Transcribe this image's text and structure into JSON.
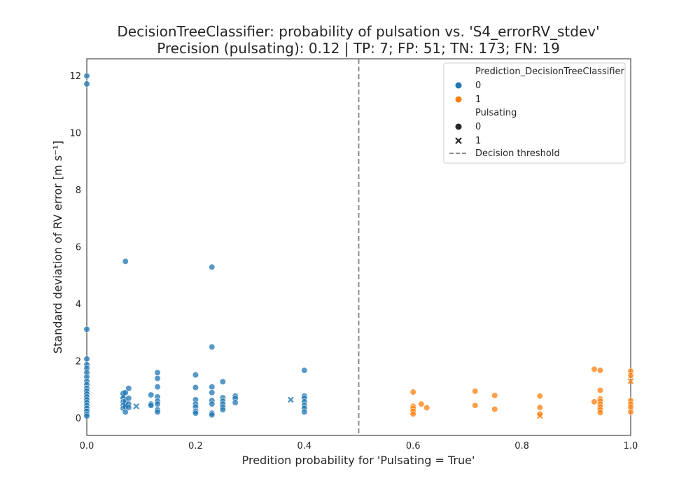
{
  "chart_data": {
    "type": "scatter",
    "title": "DecisionTreeClassifier: probability of pulsation vs. 'S4_errorRV_stdev'",
    "subtitle": "Precision (pulsating): 0.12 | TP: 7; FP: 51; TN: 173; FN: 19",
    "xlabel": "Predition probability for 'Pulsating = True'",
    "ylabel": "Standard deviation of RV error [m s⁻¹]",
    "xlim": [
      0.0,
      1.0
    ],
    "ylim": [
      -0.6,
      12.6
    ],
    "xticks": [
      0.0,
      0.2,
      0.4,
      0.6,
      0.8,
      1.0
    ],
    "xtick_labels": [
      "0.0",
      "0.2",
      "0.4",
      "0.6",
      "0.8",
      "1.0"
    ],
    "yticks": [
      0,
      2,
      4,
      6,
      8,
      10,
      12
    ],
    "ytick_labels": [
      "0",
      "2",
      "4",
      "6",
      "8",
      "10",
      "12"
    ],
    "threshold": 0.5,
    "grid": false,
    "legend_placement": "top-right",
    "legend": {
      "hue_title": "Prediction_DecisionTreeClassifier",
      "hue_items": [
        {
          "label": "0",
          "color": "#1f77b4"
        },
        {
          "label": "1",
          "color": "#ff7f0e"
        }
      ],
      "style_title": "Pulsating",
      "style_items": [
        {
          "label": "0",
          "marker": "circle"
        },
        {
          "label": "1",
          "marker": "x"
        }
      ],
      "line_label": "Decision threshold"
    },
    "colors": {
      "pred0": "#1f77b4",
      "pred1": "#ff7f0e",
      "threshold": "#7f7f7f"
    },
    "series": [
      {
        "prediction": 0,
        "pulsating": 0,
        "points": [
          [
            0.0,
            12.0
          ],
          [
            0.0,
            11.72
          ],
          [
            0.0,
            3.12
          ],
          [
            0.0,
            2.08
          ],
          [
            0.0,
            1.88
          ],
          [
            0.0,
            1.75
          ],
          [
            0.0,
            1.6
          ],
          [
            0.0,
            1.45
          ],
          [
            0.0,
            1.3
          ],
          [
            0.0,
            1.18
          ],
          [
            0.0,
            1.05
          ],
          [
            0.0,
            0.95
          ],
          [
            0.0,
            0.85
          ],
          [
            0.0,
            0.75
          ],
          [
            0.0,
            0.65
          ],
          [
            0.0,
            0.55
          ],
          [
            0.0,
            0.45
          ],
          [
            0.0,
            0.35
          ],
          [
            0.0,
            0.25
          ],
          [
            0.0,
            0.15
          ],
          [
            0.0,
            0.08
          ],
          [
            0.067,
            0.88
          ],
          [
            0.067,
            0.7
          ],
          [
            0.067,
            0.58
          ],
          [
            0.067,
            0.45
          ],
          [
            0.067,
            0.35
          ],
          [
            0.071,
            5.5
          ],
          [
            0.071,
            0.9
          ],
          [
            0.071,
            0.6
          ],
          [
            0.071,
            0.4
          ],
          [
            0.071,
            0.22
          ],
          [
            0.077,
            1.05
          ],
          [
            0.077,
            0.7
          ],
          [
            0.077,
            0.5
          ],
          [
            0.077,
            0.38
          ],
          [
            0.118,
            0.82
          ],
          [
            0.118,
            0.5
          ],
          [
            0.118,
            0.45
          ],
          [
            0.13,
            1.6
          ],
          [
            0.13,
            1.4
          ],
          [
            0.13,
            1.1
          ],
          [
            0.13,
            0.75
          ],
          [
            0.13,
            0.6
          ],
          [
            0.13,
            0.5
          ],
          [
            0.13,
            0.3
          ],
          [
            0.13,
            0.22
          ],
          [
            0.2,
            1.52
          ],
          [
            0.2,
            1.08
          ],
          [
            0.2,
            0.65
          ],
          [
            0.2,
            0.5
          ],
          [
            0.2,
            0.4
          ],
          [
            0.2,
            0.25
          ],
          [
            0.2,
            0.18
          ],
          [
            0.23,
            5.3
          ],
          [
            0.23,
            2.5
          ],
          [
            0.23,
            1.1
          ],
          [
            0.23,
            0.9
          ],
          [
            0.23,
            0.62
          ],
          [
            0.23,
            0.5
          ],
          [
            0.23,
            0.18
          ],
          [
            0.23,
            0.12
          ],
          [
            0.25,
            1.28
          ],
          [
            0.25,
            0.72
          ],
          [
            0.25,
            0.6
          ],
          [
            0.25,
            0.5
          ],
          [
            0.25,
            0.4
          ],
          [
            0.25,
            0.3
          ],
          [
            0.273,
            0.78
          ],
          [
            0.273,
            0.7
          ],
          [
            0.273,
            0.55
          ],
          [
            0.4,
            1.68
          ],
          [
            0.4,
            0.78
          ],
          [
            0.4,
            0.7
          ],
          [
            0.4,
            0.58
          ],
          [
            0.4,
            0.45
          ],
          [
            0.4,
            0.35
          ],
          [
            0.4,
            0.22
          ]
        ]
      },
      {
        "prediction": 0,
        "pulsating": 1,
        "points": [
          [
            0.067,
            0.78
          ],
          [
            0.071,
            0.45
          ],
          [
            0.091,
            0.42
          ],
          [
            0.375,
            0.65
          ]
        ]
      },
      {
        "prediction": 1,
        "pulsating": 0,
        "points": [
          [
            0.6,
            0.92
          ],
          [
            0.6,
            0.42
          ],
          [
            0.6,
            0.35
          ],
          [
            0.6,
            0.25
          ],
          [
            0.6,
            0.15
          ],
          [
            0.615,
            0.5
          ],
          [
            0.625,
            0.37
          ],
          [
            0.714,
            0.95
          ],
          [
            0.714,
            0.45
          ],
          [
            0.75,
            0.8
          ],
          [
            0.75,
            0.32
          ],
          [
            0.833,
            0.78
          ],
          [
            0.833,
            0.38
          ],
          [
            0.833,
            0.15
          ],
          [
            0.933,
            1.72
          ],
          [
            0.933,
            0.58
          ],
          [
            0.944,
            1.68
          ],
          [
            0.944,
            0.98
          ],
          [
            0.944,
            0.68
          ],
          [
            0.944,
            0.6
          ],
          [
            0.944,
            0.5
          ],
          [
            0.944,
            0.4
          ],
          [
            0.944,
            0.3
          ],
          [
            0.944,
            0.2
          ],
          [
            1.0,
            1.65
          ],
          [
            1.0,
            1.5
          ],
          [
            1.0,
            0.62
          ],
          [
            1.0,
            0.5
          ],
          [
            1.0,
            0.38
          ],
          [
            1.0,
            0.22
          ]
        ]
      },
      {
        "prediction": 1,
        "pulsating": 1,
        "points": [
          [
            0.833,
            0.08
          ],
          [
            1.0,
            1.3
          ]
        ]
      }
    ]
  }
}
